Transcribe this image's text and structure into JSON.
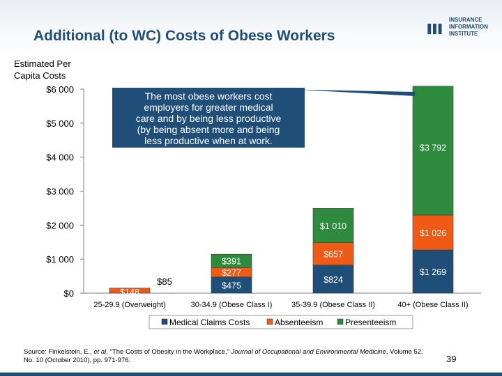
{
  "slide": {
    "title": "Additional (to WC) Costs of Obese Workers",
    "logo_text": [
      "INSURANCE",
      "INFORMATION",
      "INSTITUTE"
    ],
    "y_axis_label": [
      "Estimated Per",
      "Capita Costs"
    ],
    "callout": "The most obese workers cost employers for greater medical care and by being less productive (by being absent more and being less productive when at work.",
    "source_prefix": "Source: Finkelstein, E., ",
    "source_etal": "et al",
    "source_mid": ", \"The Costs of Obesity in the Workplace,\" ",
    "source_journal": "Journal of Occupational and Environmental Medicine",
    "source_suffix": ", Volume 52, No. 10 (October 2010), pp. 971-976.",
    "page_number": "39"
  },
  "colors": {
    "medical": "#1f4e79",
    "absenteeism": "#f05a14",
    "presenteeism": "#2e8b3e",
    "callout_fill": "#1f4e79",
    "title": "#1f4e79"
  },
  "chart_data": {
    "type": "bar",
    "stacked": true,
    "categories": [
      "25-29.9 (Overweight)",
      "30-34.9 (Obese Class I)",
      "35-39.9 (Obese Class II)",
      "40+ (Obese Class II)"
    ],
    "series": [
      {
        "name": "Medical Claims Costs",
        "values": [
          0,
          475,
          824,
          1269
        ],
        "labels": [
          "",
          "$475",
          "$824",
          "$1 269"
        ]
      },
      {
        "name": "Absenteeism",
        "values": [
          148,
          277,
          657,
          1026
        ],
        "labels": [
          "$148",
          "$277",
          "$657",
          "$1 026"
        ]
      },
      {
        "name": "Presenteeism",
        "values": [
          0,
          391,
          1010,
          3792
        ],
        "labels": [
          "",
          "$391",
          "$1 010",
          "$3 792"
        ]
      }
    ],
    "extra_labels": [
      "$85",
      "",
      "",
      ""
    ],
    "ylim": [
      0,
      6000
    ],
    "yticks": [
      0,
      1000,
      2000,
      3000,
      4000,
      5000,
      6000
    ],
    "ytick_labels": [
      "$0",
      "$1 000",
      "$2 000",
      "$3 000",
      "$4 000",
      "$5 000",
      "$6 000"
    ],
    "legend_position": "bottom"
  }
}
